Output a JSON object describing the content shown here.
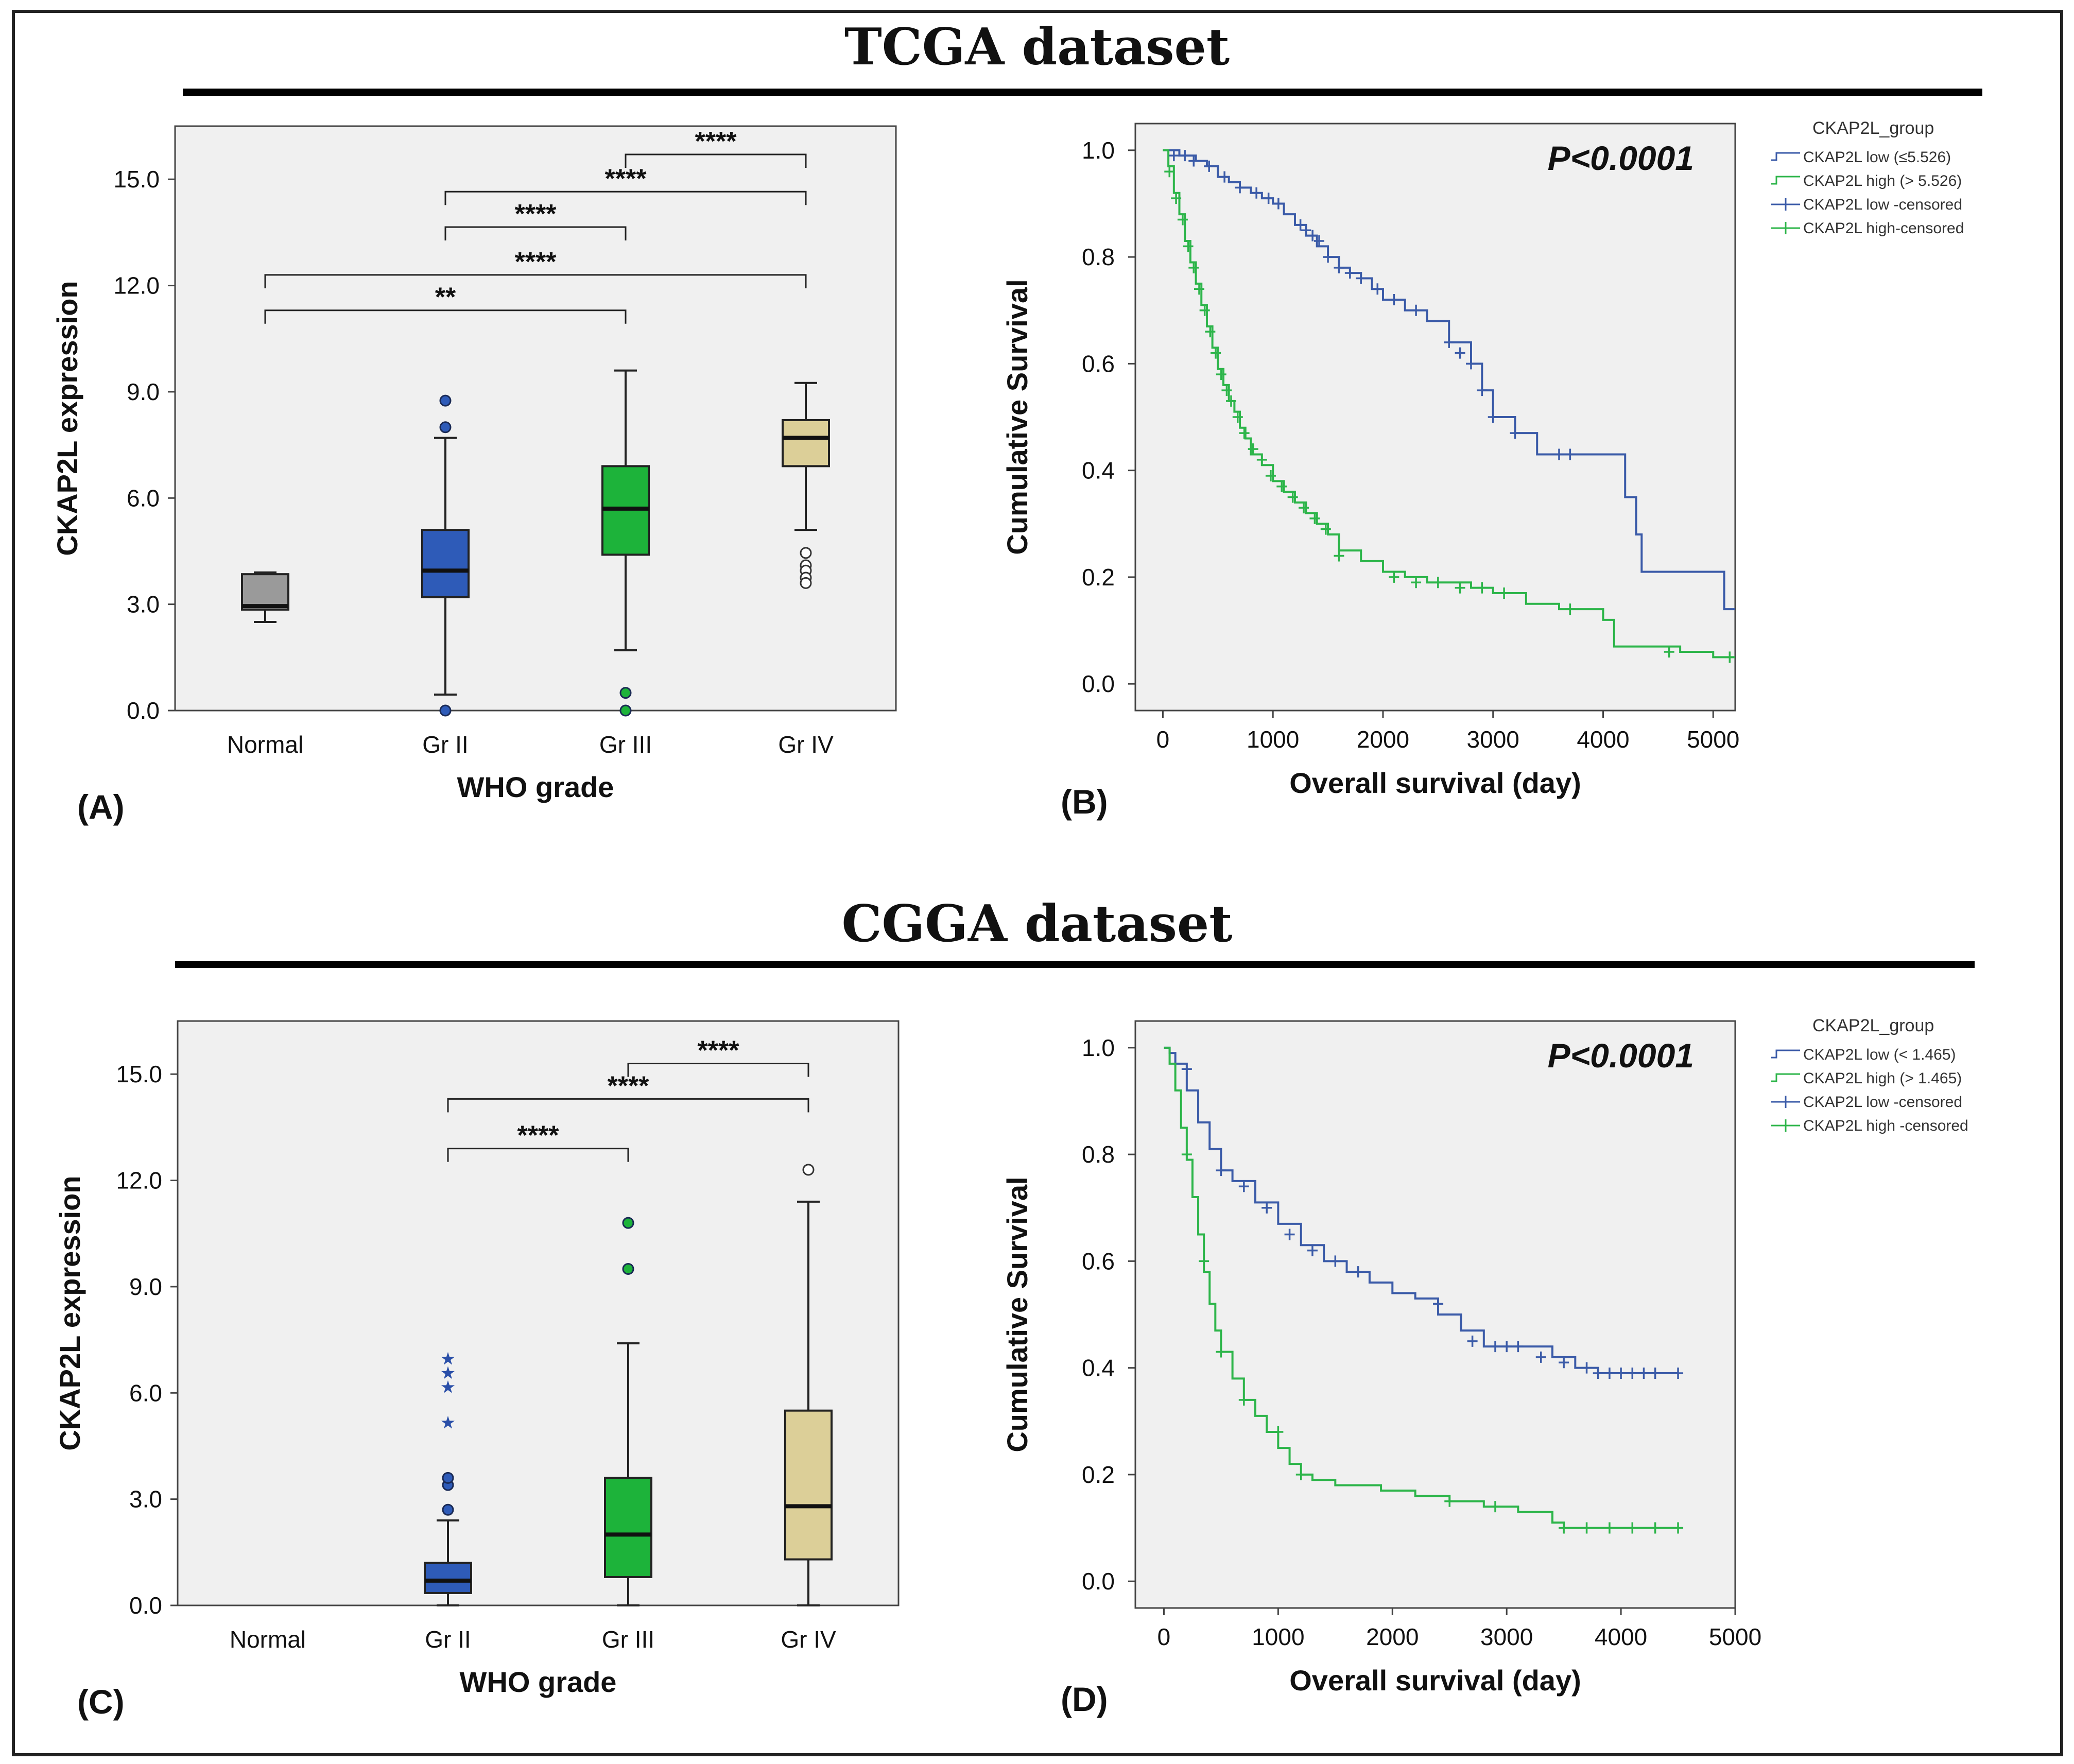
{
  "figure": {
    "sections": [
      {
        "title": "TCGA dataset"
      },
      {
        "title": "CGGA dataset"
      }
    ]
  },
  "chart_data": [
    {
      "id": "A",
      "panel_label": "(A)",
      "type": "boxplot",
      "xlabel": "WHO grade",
      "ylabel": "CKAP2L expression",
      "ylim": [
        0,
        16.5
      ],
      "yticks": [
        "0.0",
        "3.0",
        "6.0",
        "9.0",
        "12.0",
        "15.0"
      ],
      "ytick_values": [
        0,
        3,
        6,
        9,
        12,
        15
      ],
      "categories": [
        "Normal",
        "Gr II",
        "Gr III",
        "Gr IV"
      ],
      "colors": [
        "#9a9a9a",
        "#2e5bb8",
        "#1db33a",
        "#dccf98"
      ],
      "boxes": [
        {
          "category": "Normal",
          "min": 2.5,
          "q1": 2.85,
          "median": 2.95,
          "q3": 3.85,
          "max": 3.9,
          "outliers": [],
          "extremes": []
        },
        {
          "category": "Gr II",
          "min": 0.45,
          "q1": 3.2,
          "median": 3.95,
          "q3": 5.1,
          "max": 7.7,
          "outliers": [
            8.75,
            8.0,
            0.0
          ],
          "extremes": []
        },
        {
          "category": "Gr III",
          "min": 1.7,
          "q1": 4.4,
          "median": 5.7,
          "q3": 6.9,
          "max": 9.6,
          "outliers": [
            0.5,
            0.0
          ],
          "extremes": []
        },
        {
          "category": "Gr IV",
          "min": 5.1,
          "q1": 6.9,
          "median": 7.7,
          "q3": 8.2,
          "max": 9.25,
          "outliers": [
            4.45,
            4.1,
            3.95,
            3.75,
            3.6
          ],
          "extremes": []
        }
      ],
      "significance": [
        {
          "from": "Gr III",
          "to": "Gr IV",
          "y": 15.7,
          "label": "****"
        },
        {
          "from": "Gr II",
          "to": "Gr IV",
          "y": 14.65,
          "label": "****"
        },
        {
          "from": "Gr II",
          "to": "Gr III",
          "y": 13.65,
          "label": "****"
        },
        {
          "from": "Normal",
          "to": "Gr IV",
          "y": 12.3,
          "label": "****"
        },
        {
          "from": "Normal",
          "to": "Gr III",
          "y": 11.3,
          "label": "**"
        }
      ]
    },
    {
      "id": "B",
      "panel_label": "(B)",
      "type": "line",
      "subtype": "kaplan-meier",
      "xlabel": "Overall survival (day)",
      "ylabel": "Cumulative Survival",
      "xlim": [
        -250,
        5200
      ],
      "ylim": [
        -0.05,
        1.05
      ],
      "xticks": [
        "0",
        "1000",
        "2000",
        "3000",
        "4000",
        "5000"
      ],
      "xtick_values": [
        0,
        1000,
        2000,
        3000,
        4000,
        5000
      ],
      "yticks": [
        "0.0",
        "0.2",
        "0.4",
        "0.6",
        "0.8",
        "1.0"
      ],
      "ytick_values": [
        0,
        0.2,
        0.4,
        0.6,
        0.8,
        1.0
      ],
      "p_value": "P<0.0001",
      "legend_title": "CKAP2L_group",
      "legend": [
        "CKAP2L low (≤5.526)",
        "CKAP2L high (> 5.526)",
        "CKAP2L low -censored",
        "CKAP2L high-censored"
      ],
      "series": [
        {
          "name": "CKAP2L low (≤5.526)",
          "color": "#3b5ba8",
          "x": [
            0,
            150,
            300,
            400,
            500,
            600,
            700,
            800,
            900,
            1000,
            1100,
            1200,
            1300,
            1400,
            1500,
            1600,
            1700,
            1800,
            1900,
            2000,
            2200,
            2400,
            2600,
            2800,
            2900,
            3000,
            3200,
            3400,
            3600,
            3900,
            4200,
            4300,
            4350,
            4500,
            4700,
            5000,
            5100,
            5200
          ],
          "y": [
            1.0,
            0.99,
            0.98,
            0.97,
            0.95,
            0.94,
            0.93,
            0.92,
            0.91,
            0.9,
            0.88,
            0.86,
            0.84,
            0.82,
            0.8,
            0.78,
            0.77,
            0.76,
            0.74,
            0.72,
            0.7,
            0.68,
            0.64,
            0.6,
            0.55,
            0.5,
            0.47,
            0.43,
            0.43,
            0.43,
            0.35,
            0.28,
            0.21,
            0.21,
            0.21,
            0.21,
            0.14,
            0.14
          ],
          "censored_x": [
            100,
            200,
            280,
            420,
            560,
            700,
            850,
            960,
            1050,
            1250,
            1300,
            1360,
            1420,
            1500,
            1600,
            1700,
            1800,
            1950,
            2100,
            2300,
            2600,
            2700,
            2800,
            2900,
            3000,
            3200,
            3600,
            3700
          ],
          "censored_y": [
            0.99,
            0.99,
            0.98,
            0.97,
            0.95,
            0.93,
            0.92,
            0.91,
            0.9,
            0.86,
            0.85,
            0.84,
            0.83,
            0.8,
            0.78,
            0.77,
            0.76,
            0.74,
            0.72,
            0.7,
            0.64,
            0.62,
            0.6,
            0.55,
            0.5,
            0.47,
            0.43,
            0.43
          ]
        },
        {
          "name": "CKAP2L high (> 5.526)",
          "color": "#2db54a",
          "x": [
            0,
            50,
            100,
            150,
            200,
            250,
            300,
            350,
            400,
            450,
            500,
            550,
            600,
            650,
            700,
            750,
            800,
            900,
            1000,
            1100,
            1200,
            1300,
            1400,
            1500,
            1600,
            1800,
            2000,
            2200,
            2400,
            2600,
            2800,
            3000,
            3300,
            3600,
            3900,
            4000,
            4100,
            4300,
            4500,
            4700,
            5000,
            5200
          ],
          "y": [
            1.0,
            0.97,
            0.92,
            0.88,
            0.83,
            0.79,
            0.75,
            0.71,
            0.67,
            0.63,
            0.59,
            0.56,
            0.53,
            0.51,
            0.48,
            0.46,
            0.43,
            0.41,
            0.38,
            0.36,
            0.34,
            0.32,
            0.3,
            0.28,
            0.25,
            0.23,
            0.21,
            0.2,
            0.19,
            0.19,
            0.18,
            0.17,
            0.15,
            0.14,
            0.14,
            0.12,
            0.07,
            0.07,
            0.07,
            0.06,
            0.05,
            0.05
          ],
          "censored_x": [
            60,
            120,
            180,
            230,
            280,
            330,
            380,
            430,
            480,
            530,
            580,
            620,
            680,
            740,
            820,
            900,
            980,
            1080,
            1180,
            1280,
            1380,
            1480,
            1600,
            2100,
            2300,
            2500,
            2700,
            2900,
            3100,
            3700,
            4600,
            5150
          ],
          "censored_y": [
            0.96,
            0.91,
            0.87,
            0.82,
            0.78,
            0.74,
            0.7,
            0.66,
            0.62,
            0.58,
            0.55,
            0.53,
            0.5,
            0.47,
            0.44,
            0.42,
            0.39,
            0.37,
            0.35,
            0.33,
            0.31,
            0.29,
            0.24,
            0.2,
            0.19,
            0.19,
            0.18,
            0.18,
            0.17,
            0.14,
            0.06,
            0.05
          ]
        }
      ]
    },
    {
      "id": "C",
      "panel_label": "(C)",
      "type": "boxplot",
      "xlabel": "WHO grade",
      "ylabel": "CKAP2L expression",
      "ylim": [
        0,
        16.5
      ],
      "yticks": [
        "0.0",
        "3.0",
        "6.0",
        "9.0",
        "12.0",
        "15.0"
      ],
      "ytick_values": [
        0,
        3,
        6,
        9,
        12,
        15
      ],
      "categories": [
        "Normal",
        "Gr II",
        "Gr III",
        "Gr IV"
      ],
      "colors": [
        "#9a9a9a",
        "#2e5bb8",
        "#1db33a",
        "#dccf98"
      ],
      "boxes": [
        null,
        {
          "category": "Gr II",
          "min": 0.0,
          "q1": 0.35,
          "median": 0.7,
          "q3": 1.2,
          "max": 2.4,
          "outliers": [
            2.7,
            3.4,
            3.6
          ],
          "extremes": [
            5.2,
            6.2,
            6.6,
            7.0
          ]
        },
        {
          "category": "Gr III",
          "min": 0.0,
          "q1": 0.8,
          "median": 2.0,
          "q3": 3.6,
          "max": 7.4,
          "outliers": [
            9.5,
            10.8
          ],
          "extremes": []
        },
        {
          "category": "Gr IV",
          "min": 0.0,
          "q1": 1.3,
          "median": 2.8,
          "q3": 5.5,
          "max": 11.4,
          "outliers": [
            12.3
          ],
          "extremes": []
        }
      ],
      "significance": [
        {
          "from": "Gr III",
          "to": "Gr IV",
          "y": 15.3,
          "label": "****"
        },
        {
          "from": "Gr II",
          "to": "Gr IV",
          "y": 14.3,
          "label": "****"
        },
        {
          "from": "Gr II",
          "to": "Gr III",
          "y": 12.9,
          "label": "****"
        }
      ]
    },
    {
      "id": "D",
      "panel_label": "(D)",
      "type": "line",
      "subtype": "kaplan-meier",
      "xlabel": "Overall survival (day)",
      "ylabel": "Cumulative Survival",
      "xlim": [
        -250,
        5000
      ],
      "ylim": [
        -0.05,
        1.05
      ],
      "xticks": [
        "0",
        "1000",
        "2000",
        "3000",
        "4000",
        "5000"
      ],
      "xtick_values": [
        0,
        1000,
        2000,
        3000,
        4000,
        5000
      ],
      "yticks": [
        "0.0",
        "0.2",
        "0.4",
        "0.6",
        "0.8",
        "1.0"
      ],
      "ytick_values": [
        0,
        0.2,
        0.4,
        0.6,
        0.8,
        1.0
      ],
      "p_value": "P<0.0001",
      "legend_title": "CKAP2L_group",
      "legend": [
        "CKAP2L low (< 1.465)",
        "CKAP2L high (> 1.465)",
        "CKAP2L low -censored",
        "CKAP2L high -censored"
      ],
      "series": [
        {
          "name": "CKAP2L low (< 1.465)",
          "color": "#3b5ba8",
          "x": [
            0,
            50,
            100,
            200,
            300,
            400,
            500,
            600,
            800,
            1000,
            1200,
            1400,
            1600,
            1800,
            2000,
            2200,
            2400,
            2600,
            2800,
            3000,
            3200,
            3400,
            3600,
            3800,
            4000,
            4500
          ],
          "y": [
            1.0,
            0.99,
            0.97,
            0.92,
            0.86,
            0.81,
            0.77,
            0.75,
            0.71,
            0.67,
            0.63,
            0.6,
            0.58,
            0.56,
            0.54,
            0.53,
            0.5,
            0.47,
            0.44,
            0.44,
            0.44,
            0.42,
            0.4,
            0.39,
            0.39,
            0.39
          ],
          "censored_x": [
            200,
            500,
            700,
            900,
            1100,
            1300,
            1500,
            1700,
            2400,
            2700,
            2900,
            3000,
            3100,
            3300,
            3500,
            3700,
            3800,
            3900,
            4000,
            4100,
            4200,
            4300,
            4500
          ],
          "censored_y": [
            0.96,
            0.77,
            0.74,
            0.7,
            0.65,
            0.62,
            0.6,
            0.58,
            0.52,
            0.45,
            0.44,
            0.44,
            0.44,
            0.42,
            0.41,
            0.4,
            0.39,
            0.39,
            0.39,
            0.39,
            0.39,
            0.39,
            0.39
          ]
        },
        {
          "name": "CKAP2L high (> 1.465)",
          "color": "#2db54a",
          "x": [
            0,
            50,
            100,
            150,
            200,
            250,
            300,
            350,
            400,
            450,
            500,
            600,
            700,
            800,
            900,
            1000,
            1100,
            1200,
            1300,
            1500,
            1700,
            1900,
            2200,
            2500,
            2800,
            3100,
            3400,
            3500,
            3700,
            4000,
            4300,
            4500
          ],
          "y": [
            1.0,
            0.97,
            0.92,
            0.85,
            0.79,
            0.72,
            0.65,
            0.58,
            0.52,
            0.47,
            0.43,
            0.38,
            0.34,
            0.31,
            0.28,
            0.25,
            0.22,
            0.2,
            0.19,
            0.18,
            0.18,
            0.17,
            0.16,
            0.15,
            0.14,
            0.13,
            0.11,
            0.1,
            0.1,
            0.1,
            0.1,
            0.1
          ],
          "censored_x": [
            200,
            350,
            500,
            700,
            1000,
            1200,
            2500,
            2900,
            3500,
            3700,
            3900,
            4100,
            4300,
            4500
          ],
          "censored_y": [
            0.8,
            0.6,
            0.43,
            0.34,
            0.28,
            0.2,
            0.15,
            0.14,
            0.1,
            0.1,
            0.1,
            0.1,
            0.1,
            0.1
          ]
        }
      ]
    }
  ]
}
